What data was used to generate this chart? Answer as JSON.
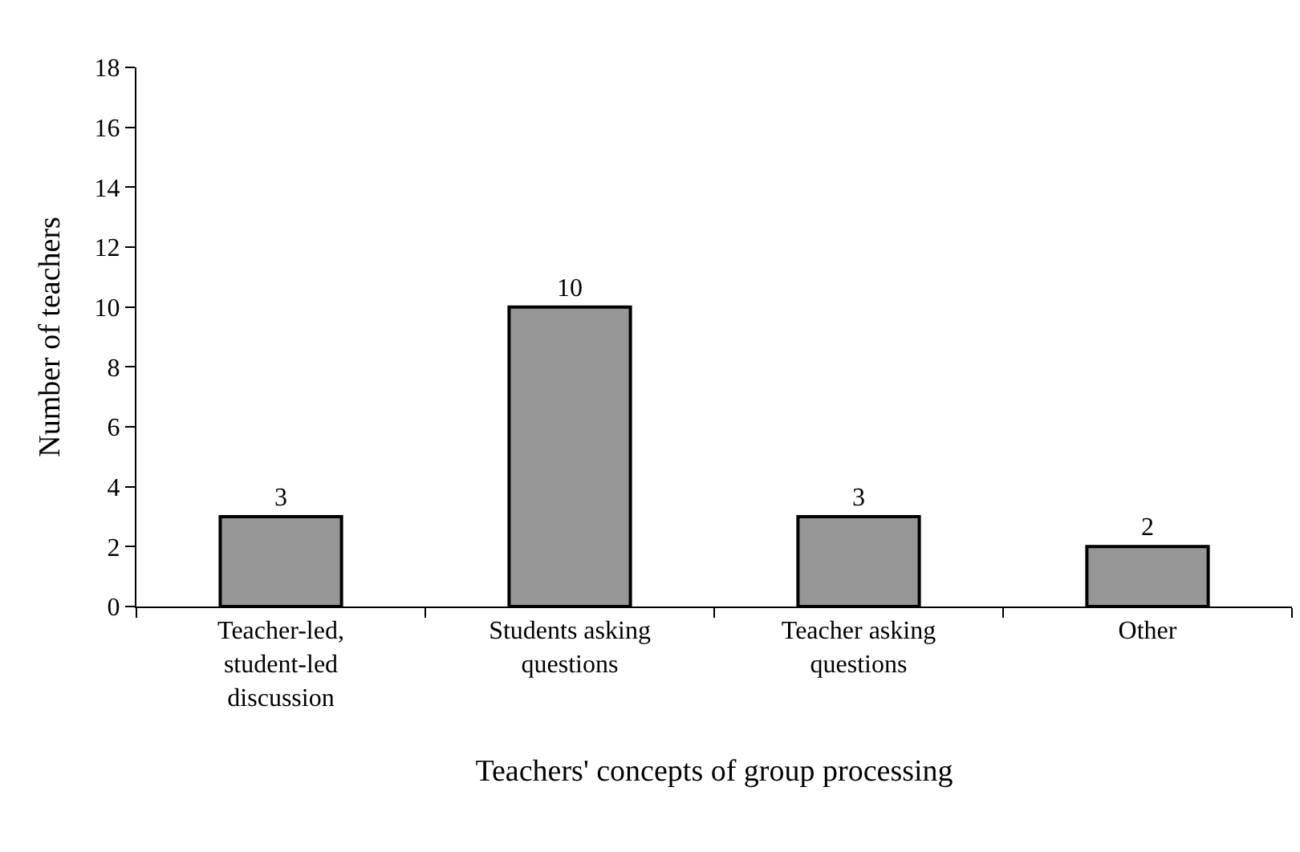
{
  "chart_data": {
    "type": "bar",
    "xlabel": "Teachers' concepts of group processing",
    "ylabel": "Number of teachers",
    "categories": [
      "Teacher-led, student-led discussion",
      "Students asking questions",
      "Teacher asking questions",
      "Other"
    ],
    "values": [
      3,
      10,
      3,
      2
    ],
    "color": "#969696",
    "ylim": [
      0,
      18
    ],
    "yticks": [
      0,
      2,
      4,
      6,
      8,
      10,
      12,
      14,
      16,
      18
    ],
    "grid": false,
    "data_labels": true
  }
}
